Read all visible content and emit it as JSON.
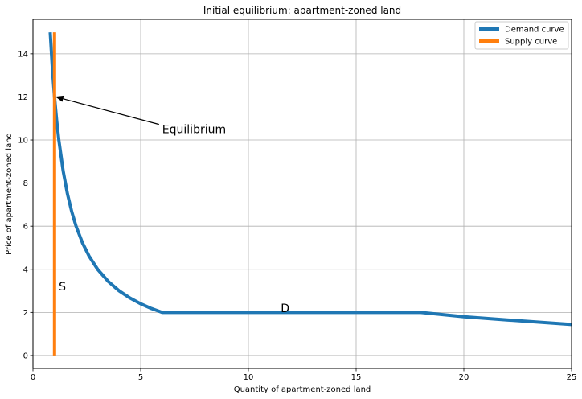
{
  "chart_data": {
    "type": "line",
    "title": "Initial equilibrium: apartment-zoned land",
    "xlabel": "Quantity of apartment-zoned land",
    "ylabel": "Price of apartment-zoned land",
    "xlim": [
      0,
      25
    ],
    "ylim": [
      -0.6,
      15.6
    ],
    "xticks": [
      0,
      5,
      10,
      15,
      20,
      25
    ],
    "yticks": [
      0,
      2,
      4,
      6,
      8,
      10,
      12,
      14
    ],
    "grid": true,
    "legend_position": "top-right",
    "series": [
      {
        "name": "Demand curve",
        "color": "#1f77b4",
        "x": [
          0.8,
          0.9,
          1.0,
          1.1,
          1.2,
          1.4,
          1.6,
          1.8,
          2.0,
          2.3,
          2.6,
          3.0,
          3.5,
          4.0,
          4.5,
          5.0,
          5.5,
          6.0,
          10.0,
          15.0,
          18.0,
          20.0,
          22.0,
          25.0
        ],
        "y": [
          15.0,
          13.33,
          12.0,
          10.91,
          10.0,
          8.57,
          7.5,
          6.67,
          6.0,
          5.22,
          4.62,
          4.0,
          3.43,
          3.0,
          2.67,
          2.4,
          2.18,
          2.0,
          2.0,
          2.0,
          2.0,
          1.8,
          1.65,
          1.44
        ]
      },
      {
        "name": "Supply curve",
        "color": "#ff7f0e",
        "x": [
          1.0,
          1.0
        ],
        "y": [
          0.0,
          15.0
        ]
      }
    ],
    "annotations": [
      {
        "text": "Equilibrium",
        "x": 6.0,
        "y": 10.5,
        "arrow_to": [
          1.0,
          12.0
        ]
      },
      {
        "text": "S",
        "x": 1.2,
        "y": 3.2
      },
      {
        "text": "D",
        "x": 11.5,
        "y": 2.2
      }
    ]
  }
}
